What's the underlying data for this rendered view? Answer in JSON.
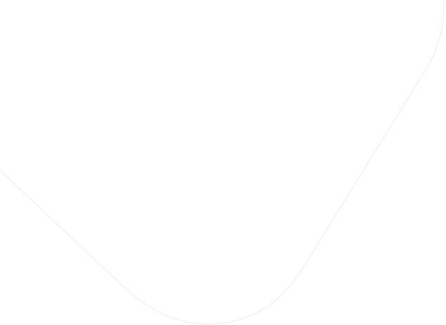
{
  "background": {
    "color": "#ffffff",
    "outline_color": "#ebebeb"
  }
}
